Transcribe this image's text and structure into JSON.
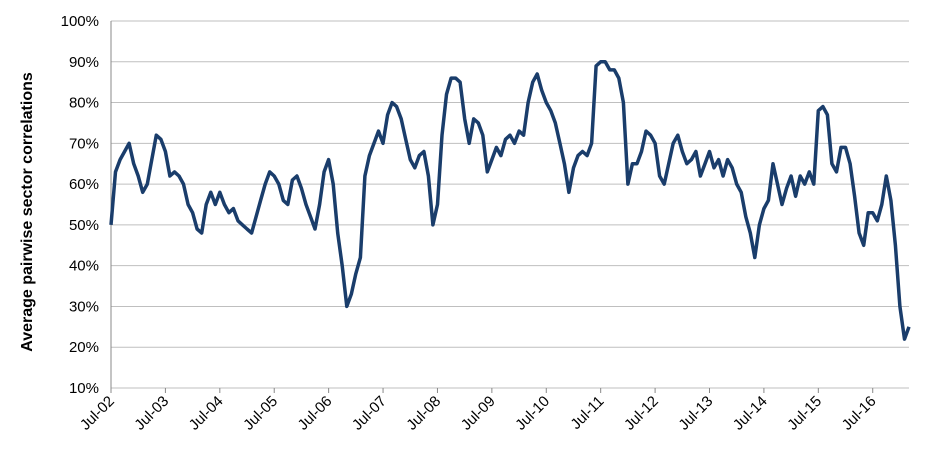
{
  "chart_data": {
    "type": "line",
    "y_label": "Average pairwise sector correlations",
    "categories": [
      "Jul-02",
      null,
      null,
      null,
      null,
      null,
      null,
      null,
      null,
      null,
      null,
      null,
      "Jul-03",
      null,
      null,
      null,
      null,
      null,
      null,
      null,
      null,
      null,
      null,
      null,
      "Jul-04",
      null,
      null,
      null,
      null,
      null,
      null,
      null,
      null,
      null,
      null,
      null,
      "Jul-05",
      null,
      null,
      null,
      null,
      null,
      null,
      null,
      null,
      null,
      null,
      null,
      "Jul-06",
      null,
      null,
      null,
      null,
      null,
      null,
      null,
      null,
      null,
      null,
      null,
      "Jul-07",
      null,
      null,
      null,
      null,
      null,
      null,
      null,
      null,
      null,
      null,
      null,
      "Jul-08",
      null,
      null,
      null,
      null,
      null,
      null,
      null,
      null,
      null,
      null,
      null,
      "Jul-09",
      null,
      null,
      null,
      null,
      null,
      null,
      null,
      null,
      null,
      null,
      null,
      "Jul-10",
      null,
      null,
      null,
      null,
      null,
      null,
      null,
      null,
      null,
      null,
      null,
      "Jul-11",
      null,
      null,
      null,
      null,
      null,
      null,
      null,
      null,
      null,
      null,
      null,
      "Jul-12",
      null,
      null,
      null,
      null,
      null,
      null,
      null,
      null,
      null,
      null,
      null,
      "Jul-13",
      null,
      null,
      null,
      null,
      null,
      null,
      null,
      null,
      null,
      null,
      null,
      "Jul-14",
      null,
      null,
      null,
      null,
      null,
      null,
      null,
      null,
      null,
      null,
      null,
      "Jul-15",
      null,
      null,
      null,
      null,
      null,
      null,
      null,
      null,
      null,
      null,
      null,
      "Jul-16",
      null,
      null,
      null,
      null,
      null,
      null,
      null,
      null
    ],
    "series": [
      {
        "name": "Average pairwise sector correlations",
        "color": "#1a3d6b",
        "values": [
          50,
          63,
          66,
          68,
          70,
          65,
          62,
          58,
          60,
          66,
          72,
          71,
          68,
          62,
          63,
          62,
          60,
          55,
          53,
          49,
          48,
          55,
          58,
          55,
          58,
          55,
          53,
          54,
          51,
          50,
          49,
          48,
          52,
          56,
          60,
          63,
          62,
          60,
          56,
          55,
          61,
          62,
          59,
          55,
          52,
          49,
          55,
          63,
          66,
          60,
          48,
          40,
          30,
          33,
          38,
          42,
          62,
          67,
          70,
          73,
          70,
          77,
          80,
          79,
          76,
          71,
          66,
          64,
          67,
          68,
          62,
          50,
          55,
          72,
          82,
          86,
          86,
          85,
          76,
          70,
          76,
          75,
          72,
          63,
          66,
          69,
          67,
          71,
          72,
          70,
          73,
          72,
          80,
          85,
          87,
          83,
          80,
          78,
          75,
          70,
          65,
          58,
          64,
          67,
          68,
          67,
          70,
          89,
          90,
          90,
          88,
          88,
          86,
          80,
          60,
          65,
          65,
          68,
          73,
          72,
          70,
          62,
          60,
          65,
          70,
          72,
          68,
          65,
          66,
          68,
          62,
          65,
          68,
          64,
          66,
          62,
          66,
          64,
          60,
          58,
          52,
          48,
          42,
          50,
          54,
          56,
          65,
          60,
          55,
          59,
          62,
          57,
          62,
          60,
          63,
          60,
          78,
          79,
          77,
          65,
          63,
          69,
          69,
          65,
          57,
          48,
          45,
          53,
          53,
          51,
          55,
          62,
          56,
          45,
          30,
          22,
          25
        ]
      }
    ],
    "ylim": [
      10,
      100
    ],
    "yticks": [
      {
        "value": 10,
        "label": "10%"
      },
      {
        "value": 20,
        "label": "20%"
      },
      {
        "value": 30,
        "label": "30%"
      },
      {
        "value": 40,
        "label": "40%"
      },
      {
        "value": 50,
        "label": "50%"
      },
      {
        "value": 60,
        "label": "60%"
      },
      {
        "value": 70,
        "label": "70%"
      },
      {
        "value": 80,
        "label": "80%"
      },
      {
        "value": 90,
        "label": "90%"
      },
      {
        "value": 100,
        "label": "100%"
      }
    ],
    "grid": true
  }
}
